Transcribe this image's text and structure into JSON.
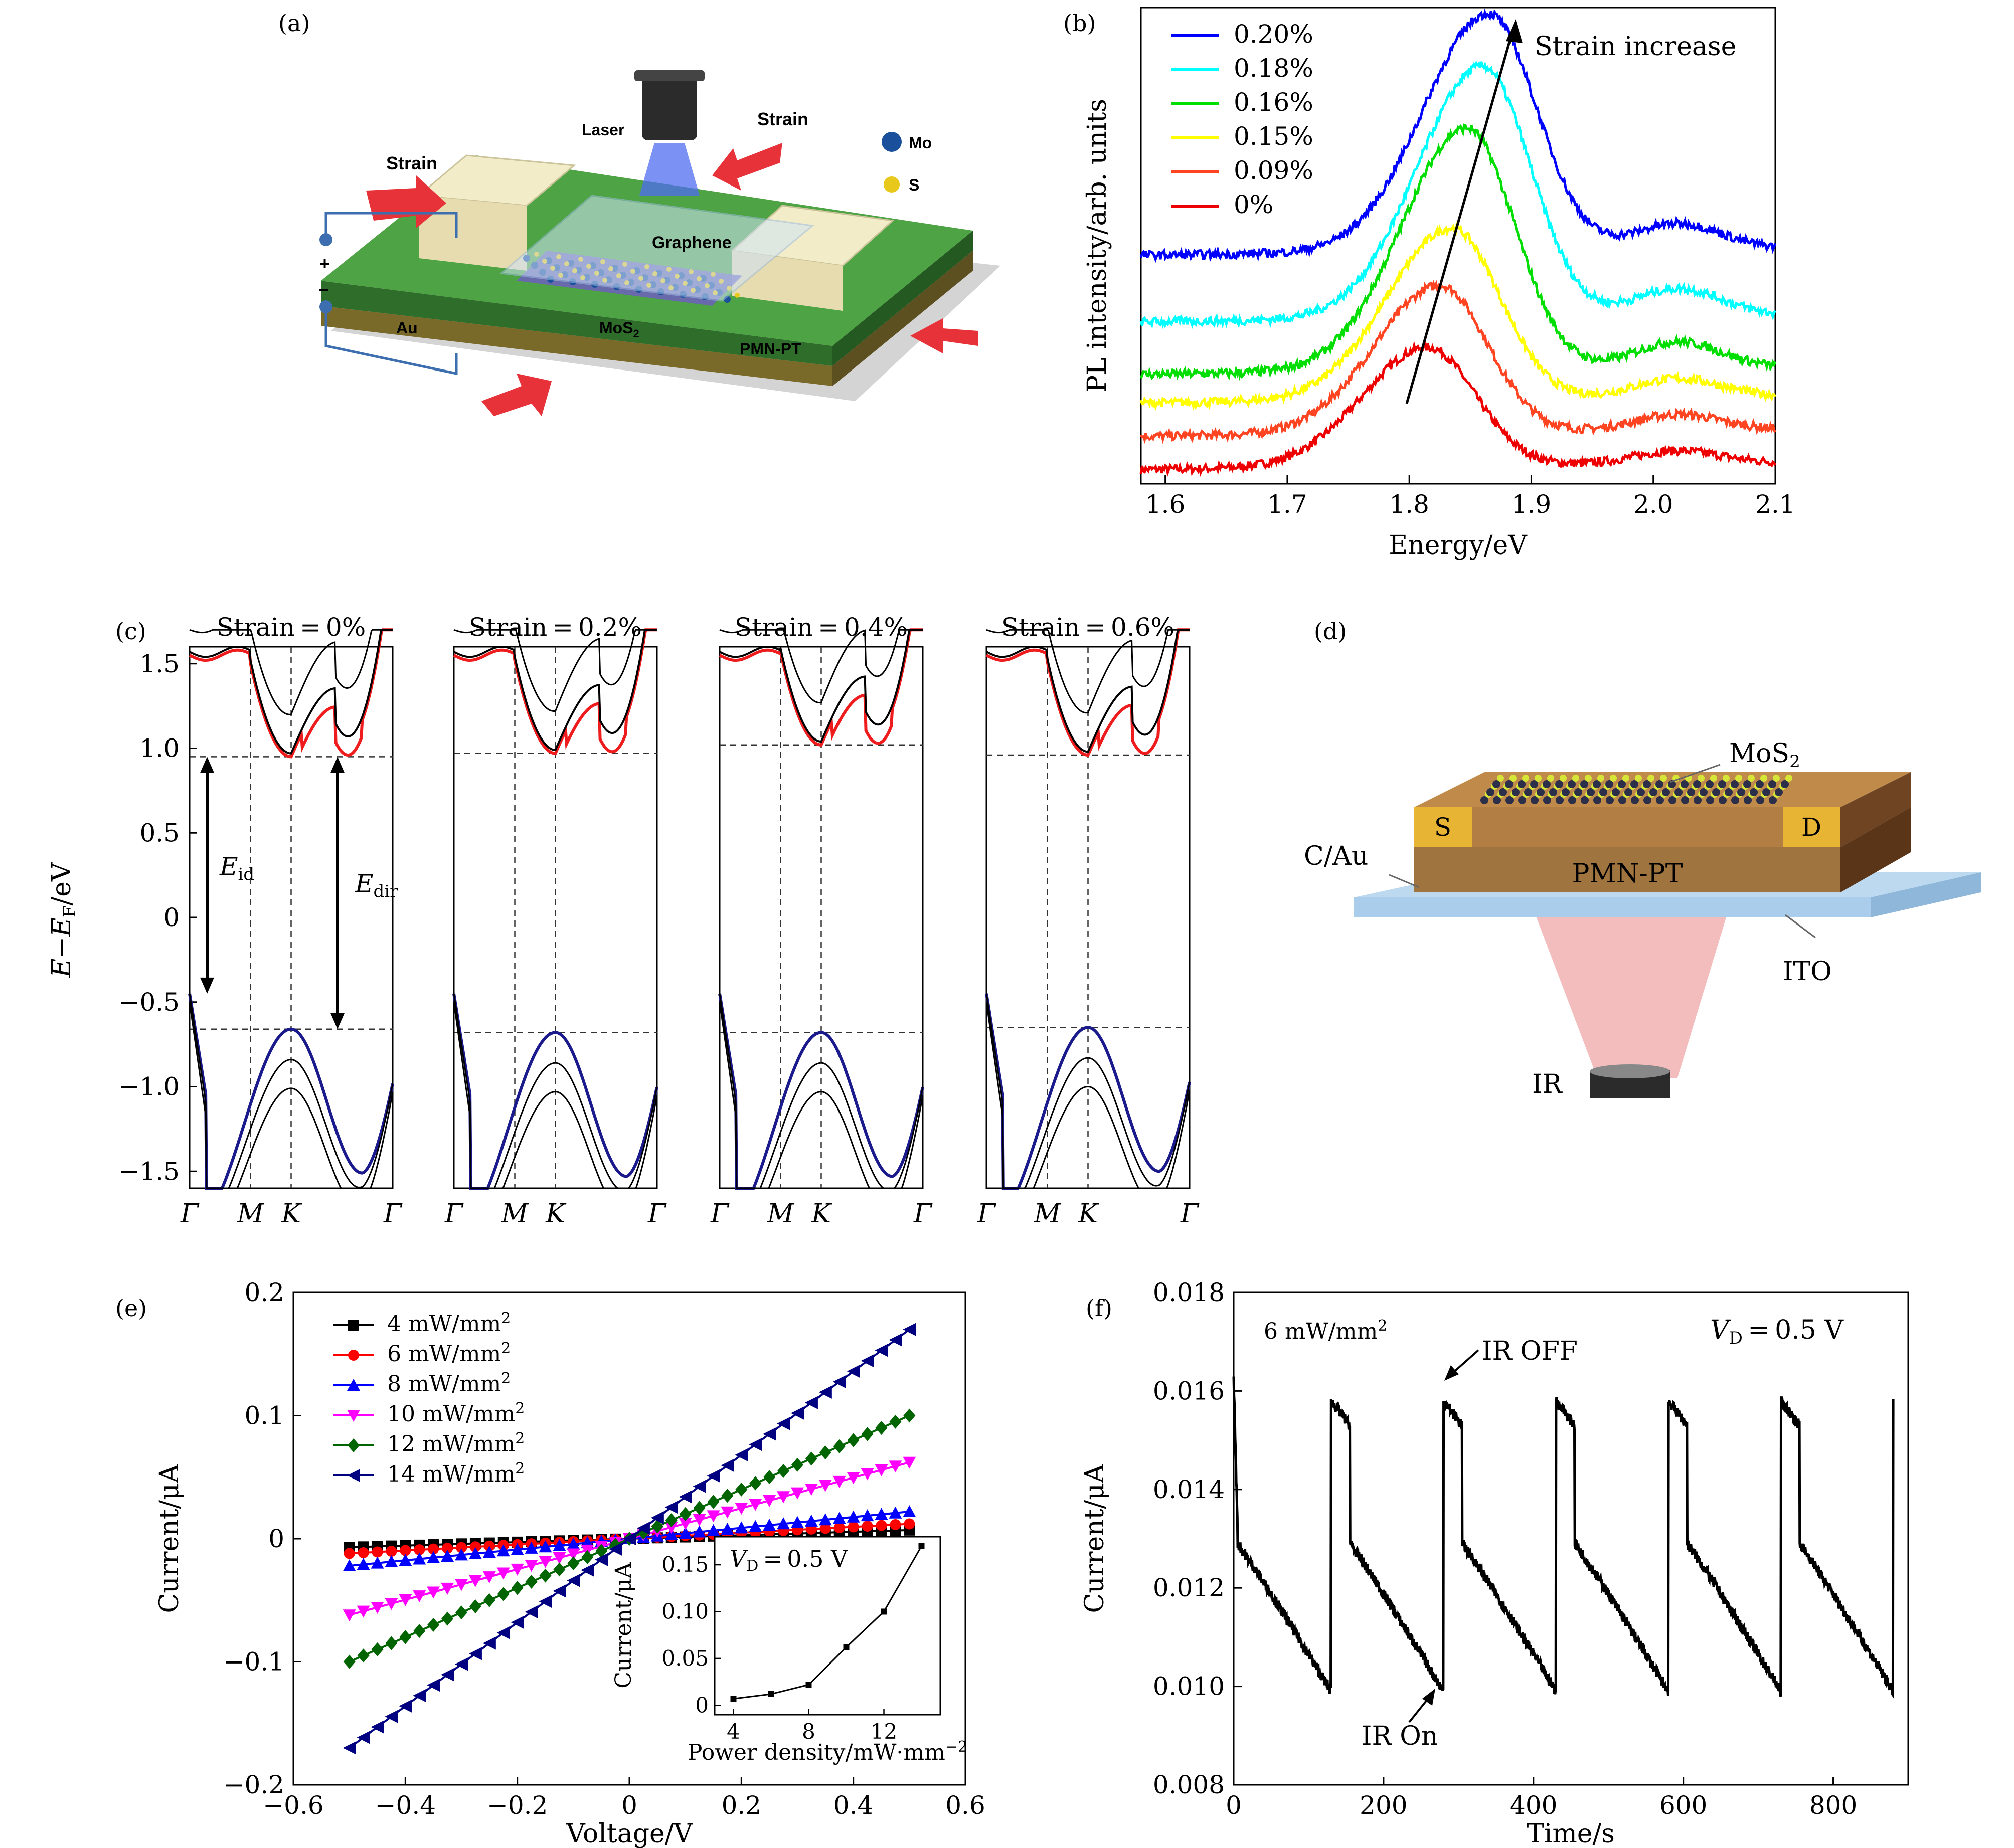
{
  "panel_labels": [
    "(a)",
    "(b)",
    "(c)",
    "(d)",
    "(e)",
    "(f)"
  ],
  "panel_a": {
    "laser": "Laser",
    "strain_left": "Strain",
    "strain_right": "Strain",
    "mo": "Mo",
    "s": "S",
    "graphene": "Graphene",
    "au": "Au",
    "mos2_base": "MoS",
    "mos2_sub": "2",
    "pmnpt": "PMN-PT",
    "plus": "+",
    "minus": "−",
    "colors": {
      "substrate": "#3f8f3a",
      "substrate_top": "#5cb04f",
      "au": "#7a6a2a",
      "electrode": "#f3ecc8",
      "mo": "#1a4f9c",
      "s": "#e8c81a",
      "arrow": "#e8323a"
    }
  },
  "panel_d": {
    "mos2_base": "MoS",
    "mos2_sub": "2",
    "s": "S",
    "d": "D",
    "cau": "C/Au",
    "pmnpt": "PMN-PT",
    "ito": "ITO",
    "ir": "IR",
    "colors": {
      "pmn": "#a0743f",
      "pmn_dark": "#5b3518",
      "ito": "#a9cdea",
      "electrode": "#e7b533",
      "beam": "#f0a7a7"
    }
  },
  "chart_data": [
    {
      "id": "b",
      "type": "line",
      "title": "",
      "xlabel": "Energy/eV",
      "ylabel": "PL intensity/arb. units",
      "xlim": [
        1.58,
        2.1
      ],
      "xticks": [
        1.6,
        1.7,
        1.8,
        1.9,
        2.0,
        2.1
      ],
      "xtick_labels": [
        "1.6",
        "1.7",
        "1.8",
        "1.9",
        "2.0",
        "2.1"
      ],
      "ylim": [
        0,
        10
      ],
      "annotation": "Strain increase",
      "series": [
        {
          "name": "0.20%",
          "color": "#0000ff",
          "offset": 4.8,
          "peak_x": 1.865,
          "amp": 5.0
        },
        {
          "name": "0.18%",
          "color": "#00ffff",
          "offset": 3.4,
          "peak_x": 1.86,
          "amp": 5.3
        },
        {
          "name": "0.16%",
          "color": "#00dd00",
          "offset": 2.3,
          "peak_x": 1.847,
          "amp": 5.1
        },
        {
          "name": "0.15%",
          "color": "#ffff00",
          "offset": 1.7,
          "peak_x": 1.835,
          "amp": 3.6
        },
        {
          "name": "0.09%",
          "color": "#ff4422",
          "offset": 1.0,
          "peak_x": 1.825,
          "amp": 3.1
        },
        {
          "name": "0%",
          "color": "#ee0000",
          "offset": 0.3,
          "peak_x": 1.815,
          "amp": 2.5
        }
      ]
    },
    {
      "id": "c",
      "type": "line",
      "ylabel_base": "E",
      "ylabel_minus": "−",
      "ylabel_e": "E",
      "ylabel_sub": "F",
      "ylabel_unit": "/eV",
      "ylim": [
        -1.6,
        1.6
      ],
      "yticks": [
        -1.5,
        -1.0,
        -0.5,
        0,
        0.5,
        1.0,
        1.5
      ],
      "ytick_labels": [
        "−1.5",
        "−1.0",
        "−0.5",
        "0",
        "0.5",
        "1.0",
        "1.5"
      ],
      "kpoints": [
        "Γ",
        "M",
        "K",
        "Γ"
      ],
      "eid_base": "E",
      "eid_sub": "id",
      "edir_base": "E",
      "edir_sub": "dir",
      "subplots": [
        {
          "title": "Strain = 0%",
          "cbm": 0.95,
          "vbm": -0.66
        },
        {
          "title": "Strain = 0.2%",
          "cbm": 0.97,
          "vbm": -0.68
        },
        {
          "title": "Strain = 0.4%",
          "cbm": 1.02,
          "vbm": -0.68
        },
        {
          "title": "Strain = 0.6%",
          "cbm": 0.96,
          "vbm": -0.65
        }
      ],
      "colors": {
        "cb": "#ee1c1c",
        "vb": "#1a1a8c",
        "other": "#000000"
      }
    },
    {
      "id": "e",
      "type": "line",
      "xlabel": "Voltage/V",
      "ylabel": "Current/μA",
      "xlim": [
        -0.6,
        0.6
      ],
      "ylim": [
        -0.2,
        0.2
      ],
      "xticks": [
        -0.6,
        -0.4,
        -0.2,
        0,
        0.2,
        0.4,
        0.6
      ],
      "xtick_labels": [
        "−0.6",
        "−0.4",
        "−0.2",
        "0",
        "0.2",
        "0.4",
        "0.6"
      ],
      "yticks": [
        -0.2,
        -0.1,
        0,
        0.1,
        0.2
      ],
      "ytick_labels": [
        "−0.2",
        "−0.1",
        "0",
        "0.1",
        "0.2"
      ],
      "series": [
        {
          "name": "4 mW/mm",
          "sup": "2",
          "color": "#000000",
          "marker": "square",
          "i_at_05": 0.007
        },
        {
          "name": "6 mW/mm",
          "sup": "2",
          "color": "#ff0000",
          "marker": "circle",
          "i_at_05": 0.012
        },
        {
          "name": "8 mW/mm",
          "sup": "2",
          "color": "#0000ff",
          "marker": "triangle-up",
          "i_at_05": 0.022
        },
        {
          "name": "10 mW/mm",
          "sup": "2",
          "color": "#ff00ff",
          "marker": "triangle-down",
          "i_at_05": 0.062
        },
        {
          "name": "12 mW/mm",
          "sup": "2",
          "color": "#006400",
          "marker": "diamond",
          "i_at_05": 0.1
        },
        {
          "name": "14 mW/mm",
          "sup": "2",
          "color": "#000080",
          "marker": "triangle-left",
          "i_at_05": 0.17
        }
      ],
      "inset": {
        "xlabel": "Power density/mW·mm",
        "xlabel_sup": "−2",
        "ylabel": "Current/μA",
        "label_base": "V",
        "label_sub": "D",
        "label_rest": " = 0.5 V",
        "xlim": [
          3,
          15
        ],
        "ylim": [
          -0.01,
          0.18
        ],
        "xticks": [
          4,
          8,
          12
        ],
        "xtick_labels": [
          "4",
          "8",
          "12"
        ],
        "yticks": [
          0,
          0.05,
          0.1,
          0.15
        ],
        "ytick_labels": [
          "0",
          "0.05",
          "0.10",
          "0.15"
        ],
        "x": [
          4,
          6,
          8,
          10,
          12,
          14
        ],
        "y": [
          0.007,
          0.012,
          0.022,
          0.062,
          0.1,
          0.17
        ]
      }
    },
    {
      "id": "f",
      "type": "line",
      "xlabel": "Time/s",
      "ylabel": "Current/μA",
      "xlim": [
        0,
        900
      ],
      "ylim": [
        0.008,
        0.018
      ],
      "xticks": [
        0,
        200,
        400,
        600,
        800
      ],
      "xtick_labels": [
        "0",
        "200",
        "400",
        "600",
        "800"
      ],
      "yticks": [
        0.008,
        0.01,
        0.012,
        0.014,
        0.016,
        0.018
      ],
      "ytick_labels": [
        "0.008",
        "0.010",
        "0.012",
        "0.014",
        "0.016",
        "0.018"
      ],
      "cycle_period": 150,
      "on_value": 0.0158,
      "off_value": 0.0099,
      "plateau": 0.0129,
      "power_label": "6 mW/mm",
      "power_sup": "2",
      "ir_off": "IR OFF",
      "ir_on": "IR On",
      "vd_base": "V",
      "vd_sub": "D",
      "vd_rest": " = 0.5 V"
    }
  ]
}
